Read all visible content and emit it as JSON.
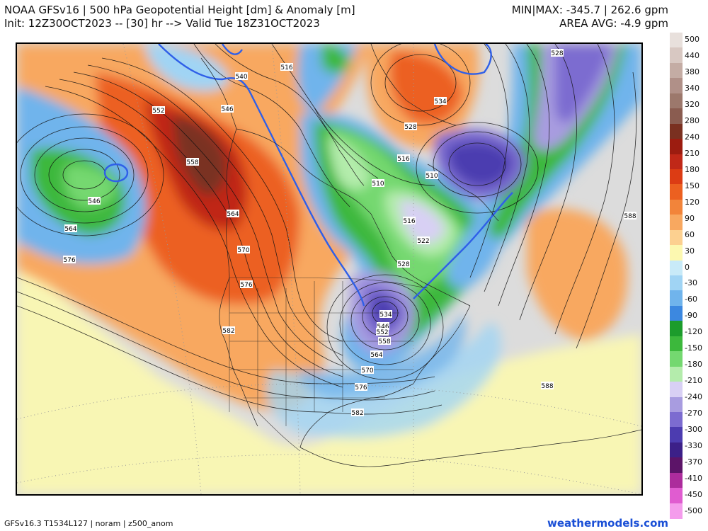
{
  "header": {
    "title_line1": "NOAA GFSv16 |  500 hPa Geopotential Height [dm] & Anomaly [m]",
    "title_line2": "Init: 12Z30OCT2023 -- [30] hr --> Valid Tue 18Z31OCT2023",
    "stat_line1": "MIN|MAX: -345.7 | 262.6 gpm",
    "stat_line2": "AREA AVG: -4.9 gpm"
  },
  "footer": {
    "model_info": "GFSv16.3 T1534L127 | noram | z500_anom",
    "site": "weathermodels.com"
  },
  "colorbar": {
    "labels": [
      "500",
      "440",
      "380",
      "340",
      "320",
      "280",
      "240",
      "210",
      "180",
      "150",
      "120",
      "90",
      "60",
      "30",
      "0",
      "-30",
      "-60",
      "-90",
      "-120",
      "-150",
      "-180",
      "-210",
      "-240",
      "-270",
      "-300",
      "-330",
      "-370",
      "-410",
      "-450",
      "-500"
    ],
    "colors": [
      "#e8e0dc",
      "#d8c8c2",
      "#c4aca4",
      "#b09088",
      "#9c786c",
      "#8a5c50",
      "#7a3020",
      "#9c1c10",
      "#c02818",
      "#dc3c14",
      "#ec6020",
      "#f2843a",
      "#f8a860",
      "#fcd090",
      "#fcf8b0",
      "#c8eaf8",
      "#a0d4f4",
      "#70b4ec",
      "#3c88e0",
      "#1c9c2c",
      "#3cb83c",
      "#74d870",
      "#b4ecac",
      "#d8d0f4",
      "#a89ce0",
      "#7c6cd0",
      "#4c3cb0",
      "#3c2088",
      "#5c1468",
      "#ac2c9c",
      "#e05cd0",
      "#f49cec"
    ]
  },
  "map": {
    "contour_labels": [
      {
        "text": "516",
        "id": "516-hudson"
      },
      {
        "text": "528",
        "id": "528-north"
      },
      {
        "text": "528",
        "id": "528-labrador"
      },
      {
        "text": "534",
        "id": "534-greenland"
      },
      {
        "text": "540",
        "id": "540-alaska"
      },
      {
        "text": "546",
        "id": "546-yukon"
      },
      {
        "text": "546",
        "id": "546-pacific"
      },
      {
        "text": "552",
        "id": "552-alaska"
      },
      {
        "text": "558",
        "id": "558-bc"
      },
      {
        "text": "564",
        "id": "564-bc"
      },
      {
        "text": "564",
        "id": "564-pacific"
      },
      {
        "text": "570",
        "id": "570-wa"
      },
      {
        "text": "576",
        "id": "576-pacific"
      },
      {
        "text": "576",
        "id": "576-or"
      },
      {
        "text": "582",
        "id": "582-ca"
      },
      {
        "text": "582",
        "id": "582-gulf"
      },
      {
        "text": "510",
        "id": "510-hudson"
      },
      {
        "text": "516",
        "id": "516-quebec"
      },
      {
        "text": "510",
        "id": "510-quebec"
      },
      {
        "text": "516",
        "id": "516-ontario"
      },
      {
        "text": "522",
        "id": "522-ontario"
      },
      {
        "text": "528",
        "id": "528-ontario"
      },
      {
        "text": "534",
        "id": "534-low"
      },
      {
        "text": "546",
        "id": "546-low"
      },
      {
        "text": "552",
        "id": "552-low"
      },
      {
        "text": "558",
        "id": "558-low"
      },
      {
        "text": "564",
        "id": "564-ms"
      },
      {
        "text": "570",
        "id": "570-la"
      },
      {
        "text": "576",
        "id": "576-gulf"
      },
      {
        "text": "588",
        "id": "588-atlantic"
      },
      {
        "text": "588",
        "id": "588-caribbean"
      }
    ]
  }
}
